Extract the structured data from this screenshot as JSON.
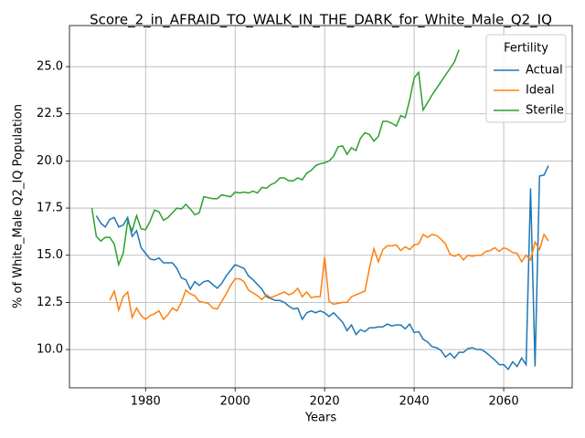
{
  "chart_data": {
    "type": "line",
    "title": "Score_2_in_AFRAID_TO_WALK_IN_THE_DARK_for_White_Male_Q2_IQ",
    "xlabel": "Years",
    "ylabel": "% of White_Male Q2_IQ Population",
    "legend_title": "Fertility",
    "legend": "upper right",
    "grid": true,
    "xlim": [
      1963,
      2075.3
    ],
    "ylim": [
      7.97,
      27.18
    ],
    "xticks": [
      1980,
      2000,
      2020,
      2040,
      2060
    ],
    "yticks": [
      {
        "value": 10,
        "label": "10.0"
      },
      12.5,
      {
        "value": 15,
        "label": "15.0"
      },
      17.5,
      {
        "value": 20,
        "label": "20.0"
      },
      22.5,
      {
        "value": 25,
        "label": "25.0"
      }
    ],
    "x": [
      1968,
      1969,
      1970,
      1971,
      1972,
      1973,
      1974,
      1975,
      1976,
      1977,
      1978,
      1979,
      1980,
      1981,
      1982,
      1983,
      1984,
      1985,
      1986,
      1987,
      1988,
      1989,
      1990,
      1991,
      1992,
      1993,
      1994,
      1995,
      1996,
      1997,
      1998,
      1999,
      2000,
      2001,
      2002,
      2003,
      2004,
      2005,
      2006,
      2007,
      2008,
      2009,
      2010,
      2011,
      2012,
      2013,
      2014,
      2015,
      2016,
      2017,
      2018,
      2019,
      2020,
      2021,
      2022,
      2023,
      2024,
      2025,
      2026,
      2027,
      2028,
      2029,
      2030,
      2031,
      2032,
      2033,
      2034,
      2035,
      2036,
      2037,
      2038,
      2039,
      2040,
      2041,
      2042,
      2043,
      2044,
      2045,
      2046,
      2047,
      2048,
      2049,
      2050,
      2051,
      2052,
      2053,
      2054,
      2055,
      2056,
      2057,
      2058,
      2059,
      2060,
      2061,
      2062,
      2063,
      2064,
      2065,
      2066,
      2067,
      2068,
      2069,
      2070
    ],
    "series": [
      {
        "name": "Actual",
        "color": "#1f77b4",
        "values": [
          null,
          17.1,
          16.7,
          16.5,
          16.9,
          17.0,
          16.5,
          16.6,
          17.0,
          16.0,
          16.3,
          15.4,
          15.1,
          14.8,
          14.75,
          14.85,
          14.6,
          14.6,
          14.6,
          14.3,
          13.8,
          13.7,
          13.2,
          13.6,
          13.4,
          13.6,
          13.65,
          13.45,
          13.25,
          13.5,
          13.9,
          14.2,
          14.5,
          14.4,
          14.3,
          13.9,
          13.7,
          13.45,
          13.2,
          12.8,
          12.7,
          12.6,
          12.6,
          12.5,
          12.3,
          12.15,
          12.2,
          11.6,
          11.95,
          12.05,
          11.95,
          12.05,
          11.95,
          11.75,
          11.95,
          11.7,
          11.45,
          11.0,
          11.3,
          10.8,
          11.05,
          10.95,
          11.15,
          11.15,
          11.2,
          11.2,
          11.35,
          11.25,
          11.3,
          11.3,
          11.1,
          11.35,
          10.9,
          10.95,
          10.55,
          10.4,
          10.15,
          10.1,
          9.95,
          9.6,
          9.8,
          9.55,
          9.85,
          9.85,
          10.05,
          10.1,
          10.0,
          10.0,
          9.85,
          9.65,
          9.45,
          9.2,
          9.2,
          8.95,
          9.35,
          9.1,
          9.55,
          9.2,
          18.55,
          9.1,
          19.2,
          19.25,
          19.75
        ]
      },
      {
        "name": "Ideal",
        "color": "#ff7f0e",
        "values": [
          null,
          null,
          null,
          null,
          12.6,
          13.1,
          12.1,
          12.8,
          13.05,
          11.7,
          12.2,
          11.8,
          11.6,
          11.8,
          11.9,
          12.05,
          11.6,
          11.85,
          12.2,
          12.05,
          12.5,
          13.15,
          12.95,
          12.85,
          12.55,
          12.5,
          12.45,
          12.2,
          12.15,
          12.55,
          12.95,
          13.4,
          13.75,
          13.75,
          13.6,
          13.15,
          13.0,
          12.85,
          12.65,
          12.9,
          12.75,
          12.85,
          12.95,
          13.05,
          12.9,
          13.0,
          13.25,
          12.8,
          13.05,
          12.75,
          12.8,
          12.8,
          14.9,
          12.55,
          12.4,
          12.45,
          12.5,
          12.5,
          12.8,
          12.9,
          13.0,
          13.1,
          14.3,
          15.35,
          14.65,
          15.3,
          15.5,
          15.5,
          15.55,
          15.25,
          15.45,
          15.3,
          15.55,
          15.6,
          16.1,
          15.95,
          16.1,
          16.05,
          15.85,
          15.6,
          15.05,
          14.95,
          15.05,
          14.75,
          15.0,
          14.95,
          15.0,
          15.0,
          15.2,
          15.25,
          15.4,
          15.2,
          15.4,
          15.3,
          15.15,
          15.1,
          14.65,
          15.0,
          14.75,
          15.7,
          15.3,
          16.1,
          15.75
        ]
      },
      {
        "name": "Sterile",
        "color": "#2ca02c",
        "values": [
          17.5,
          16.0,
          15.75,
          15.95,
          15.95,
          15.6,
          14.5,
          15.1,
          16.8,
          16.3,
          17.1,
          16.4,
          16.35,
          16.8,
          17.4,
          17.3,
          16.85,
          17.0,
          17.25,
          17.5,
          17.45,
          17.7,
          17.45,
          17.15,
          17.25,
          18.1,
          18.05,
          18.0,
          18.0,
          18.2,
          18.15,
          18.1,
          18.35,
          18.3,
          18.35,
          18.3,
          18.4,
          18.3,
          18.6,
          18.55,
          18.75,
          18.85,
          19.1,
          19.1,
          18.95,
          18.95,
          19.1,
          19.0,
          19.35,
          19.5,
          19.75,
          19.85,
          19.9,
          20.0,
          20.25,
          20.75,
          20.8,
          20.35,
          20.7,
          20.55,
          21.2,
          21.5,
          21.4,
          21.05,
          21.3,
          22.1,
          22.1,
          22.0,
          21.85,
          22.4,
          22.3,
          23.25,
          24.4,
          24.7,
          22.7,
          23.1,
          23.5,
          23.85,
          24.2,
          24.55,
          24.9,
          25.25,
          25.9,
          null,
          null,
          null,
          null,
          null,
          null,
          null,
          null,
          null,
          null,
          null,
          null,
          null,
          null,
          null,
          null,
          null,
          null,
          null,
          null
        ]
      }
    ]
  }
}
